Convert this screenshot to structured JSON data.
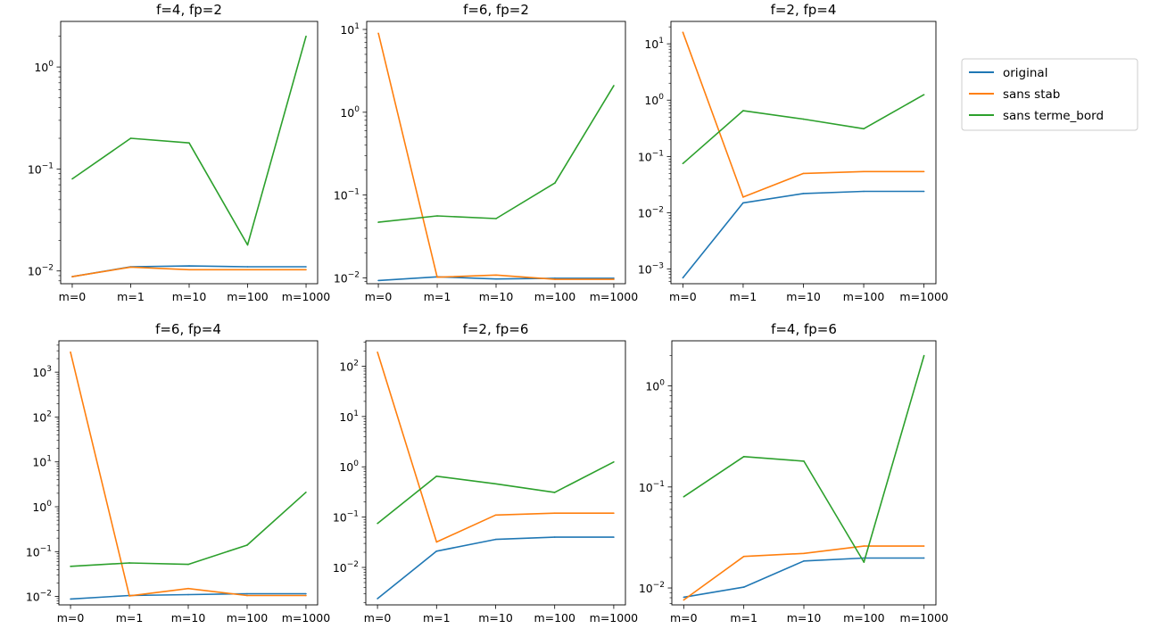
{
  "chart_data": [
    {
      "type": "line",
      "title": "f=4, fp=2",
      "categories": [
        "m=0",
        "m=1",
        "m=10",
        "m=100",
        "m=1000"
      ],
      "yscale": "log",
      "ylim": [
        0.0075,
        2.8
      ],
      "yticks": [
        {
          "value": 0.01,
          "base": "10",
          "exp": "−2"
        },
        {
          "value": 0.1,
          "base": "10",
          "exp": "−1"
        },
        {
          "value": 1,
          "base": "10",
          "exp": "0"
        }
      ],
      "series": [
        {
          "name": "original",
          "values": [
            0.0088,
            0.011,
            0.0112,
            0.011,
            0.011
          ]
        },
        {
          "name": "sans stab",
          "values": [
            0.0088,
            0.0109,
            0.0103,
            0.0103,
            0.0103
          ]
        },
        {
          "name": "sans terme_bord",
          "values": [
            0.08,
            0.2,
            0.18,
            0.018,
            2.0
          ]
        }
      ]
    },
    {
      "type": "line",
      "title": "f=6, fp=2",
      "categories": [
        "m=0",
        "m=1",
        "m=10",
        "m=100",
        "m=1000"
      ],
      "yscale": "log",
      "ylim": [
        0.0085,
        12.5
      ],
      "yticks": [
        {
          "value": 0.01,
          "base": "10",
          "exp": "−2"
        },
        {
          "value": 0.1,
          "base": "10",
          "exp": "−1"
        },
        {
          "value": 1,
          "base": "10",
          "exp": "0"
        },
        {
          "value": 10,
          "base": "10",
          "exp": "1"
        }
      ],
      "series": [
        {
          "name": "original",
          "values": [
            0.0093,
            0.0103,
            0.0097,
            0.0099,
            0.0099
          ]
        },
        {
          "name": "sans stab",
          "values": [
            9.0,
            0.0102,
            0.0108,
            0.0096,
            0.0096
          ]
        },
        {
          "name": "sans terme_bord",
          "values": [
            0.047,
            0.056,
            0.052,
            0.14,
            2.1
          ]
        }
      ]
    },
    {
      "type": "line",
      "title": "f=2, fp=4",
      "categories": [
        "m=0",
        "m=1",
        "m=10",
        "m=100",
        "m=1000"
      ],
      "yscale": "log",
      "ylim": [
        0.00055,
        25
      ],
      "yticks": [
        {
          "value": 0.001,
          "base": "10",
          "exp": "−3"
        },
        {
          "value": 0.01,
          "base": "10",
          "exp": "−2"
        },
        {
          "value": 0.1,
          "base": "10",
          "exp": "−1"
        },
        {
          "value": 1,
          "base": "10",
          "exp": "0"
        },
        {
          "value": 10,
          "base": "10",
          "exp": "1"
        }
      ],
      "series": [
        {
          "name": "original",
          "values": [
            0.0007,
            0.015,
            0.022,
            0.024,
            0.024
          ]
        },
        {
          "name": "sans stab",
          "values": [
            16,
            0.019,
            0.05,
            0.054,
            0.054
          ]
        },
        {
          "name": "sans terme_bord",
          "values": [
            0.075,
            0.65,
            0.46,
            0.31,
            1.25
          ]
        }
      ]
    },
    {
      "type": "line",
      "title": "f=6, fp=4",
      "categories": [
        "m=0",
        "m=1",
        "m=10",
        "m=100",
        "m=1000"
      ],
      "yscale": "log",
      "ylim": [
        0.0065,
        5000
      ],
      "yticks": [
        {
          "value": 0.01,
          "base": "10",
          "exp": "−2"
        },
        {
          "value": 0.1,
          "base": "10",
          "exp": "−1"
        },
        {
          "value": 1,
          "base": "10",
          "exp": "0"
        },
        {
          "value": 10,
          "base": "10",
          "exp": "1"
        },
        {
          "value": 100,
          "base": "10",
          "exp": "2"
        },
        {
          "value": 1000,
          "base": "10",
          "exp": "3"
        }
      ],
      "series": [
        {
          "name": "original",
          "values": [
            0.0088,
            0.0105,
            0.011,
            0.0115,
            0.0115
          ]
        },
        {
          "name": "sans stab",
          "values": [
            2800,
            0.0103,
            0.015,
            0.0105,
            0.0105
          ]
        },
        {
          "name": "sans terme_bord",
          "values": [
            0.047,
            0.056,
            0.052,
            0.14,
            2.1
          ]
        }
      ]
    },
    {
      "type": "line",
      "title": "f=2, fp=6",
      "categories": [
        "m=0",
        "m=1",
        "m=10",
        "m=100",
        "m=1000"
      ],
      "yscale": "log",
      "ylim": [
        0.0018,
        320
      ],
      "yticks": [
        {
          "value": 0.01,
          "base": "10",
          "exp": "−2"
        },
        {
          "value": 0.1,
          "base": "10",
          "exp": "−1"
        },
        {
          "value": 1,
          "base": "10",
          "exp": "0"
        },
        {
          "value": 10,
          "base": "10",
          "exp": "1"
        },
        {
          "value": 100,
          "base": "10",
          "exp": "2"
        }
      ],
      "series": [
        {
          "name": "original",
          "values": [
            0.0024,
            0.021,
            0.036,
            0.04,
            0.04
          ]
        },
        {
          "name": "sans stab",
          "values": [
            190,
            0.032,
            0.11,
            0.12,
            0.12
          ]
        },
        {
          "name": "sans terme_bord",
          "values": [
            0.075,
            0.65,
            0.46,
            0.31,
            1.25
          ]
        }
      ]
    },
    {
      "type": "line",
      "title": "f=4, fp=6",
      "categories": [
        "m=0",
        "m=1",
        "m=10",
        "m=100",
        "m=1000"
      ],
      "yscale": "log",
      "ylim": [
        0.0068,
        2.8
      ],
      "yticks": [
        {
          "value": 0.01,
          "base": "10",
          "exp": "−2"
        },
        {
          "value": 0.1,
          "base": "10",
          "exp": "−1"
        },
        {
          "value": 1,
          "base": "10",
          "exp": "0"
        }
      ],
      "series": [
        {
          "name": "original",
          "values": [
            0.0081,
            0.0102,
            0.0185,
            0.0198,
            0.0198
          ]
        },
        {
          "name": "sans stab",
          "values": [
            0.0076,
            0.0205,
            0.022,
            0.026,
            0.026
          ]
        },
        {
          "name": "sans terme_bord",
          "values": [
            0.08,
            0.2,
            0.18,
            0.018,
            2.0
          ]
        }
      ]
    }
  ],
  "legend": {
    "placement": "right",
    "entries": [
      {
        "name": "original",
        "color": "#1f77b4"
      },
      {
        "name": "sans stab",
        "color": "#ff7f0e"
      },
      {
        "name": "sans terme_bord",
        "color": "#2ca02c"
      }
    ]
  },
  "colors": {
    "original": "#1f77b4",
    "sans stab": "#ff7f0e",
    "sans terme_bord": "#2ca02c"
  }
}
